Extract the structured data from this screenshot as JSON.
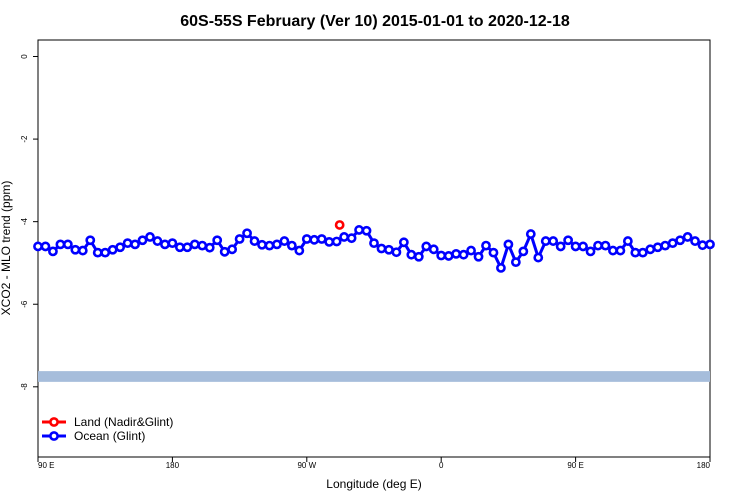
{
  "chart_data": {
    "type": "line",
    "title": "60S-55S February (Ver 10)   2015-01-01 to 2020-12-18",
    "xlabel": "Longitude (deg E)",
    "ylabel": "XCO2 - MLO trend (ppm)",
    "x_ticks": [
      {
        "value": 90,
        "label": "90 E"
      },
      {
        "value": 180,
        "label": "180"
      },
      {
        "value": 270,
        "label": "90 W"
      },
      {
        "value": 360,
        "label": "0"
      },
      {
        "value": 450,
        "label": "90 E"
      },
      {
        "value": 540,
        "label": "180"
      }
    ],
    "y_ticks": [
      0,
      -2,
      -4,
      -6,
      -8
    ],
    "xlim": [
      90,
      540
    ],
    "ylim": [
      -9.7,
      0.4
    ],
    "band": {
      "y_min": -7.88,
      "y_max": -7.62,
      "color": "#a6bddb"
    },
    "legend": {
      "position": "bottom-left"
    },
    "series": [
      {
        "name": "Land (Nadir&Glint)",
        "color": "#ff0000",
        "x": [
          292
        ],
        "y": [
          -4.08
        ]
      },
      {
        "name": "Ocean (Glint)",
        "color": "#0000ff",
        "x": [
          90,
          95,
          100,
          105,
          110,
          115,
          120,
          125,
          130,
          135,
          140,
          145,
          150,
          155,
          160,
          165,
          170,
          175,
          180,
          185,
          190,
          195,
          200,
          205,
          210,
          215,
          220,
          225,
          230,
          235,
          240,
          245,
          250,
          255,
          260,
          265,
          270,
          275,
          280,
          285,
          290,
          295,
          300,
          305,
          310,
          315,
          320,
          325,
          330,
          335,
          340,
          345,
          350,
          355,
          360,
          365,
          370,
          375,
          380,
          385,
          390,
          395,
          400,
          405,
          410,
          415,
          420,
          425,
          430,
          435,
          440,
          445,
          450,
          455,
          460,
          465,
          470,
          475,
          480,
          485,
          490,
          495,
          500,
          505,
          510,
          515,
          520,
          525,
          530,
          535,
          540
        ],
        "y": [
          -4.6,
          -4.6,
          -4.72,
          -4.55,
          -4.55,
          -4.68,
          -4.7,
          -4.45,
          -4.75,
          -4.75,
          -4.68,
          -4.62,
          -4.52,
          -4.55,
          -4.45,
          -4.37,
          -4.47,
          -4.55,
          -4.52,
          -4.62,
          -4.62,
          -4.55,
          -4.58,
          -4.63,
          -4.45,
          -4.73,
          -4.67,
          -4.42,
          -4.28,
          -4.47,
          -4.56,
          -4.58,
          -4.55,
          -4.47,
          -4.58,
          -4.7,
          -4.42,
          -4.44,
          -4.42,
          -4.49,
          -4.48,
          -4.37,
          -4.4,
          -4.2,
          -4.22,
          -4.52,
          -4.65,
          -4.68,
          -4.74,
          -4.5,
          -4.8,
          -4.85,
          -4.6,
          -4.67,
          -4.82,
          -4.83,
          -4.78,
          -4.8,
          -4.7,
          -4.85,
          -4.58,
          -4.75,
          -5.12,
          -4.55,
          -4.98,
          -4.72,
          -4.3,
          -4.87,
          -4.47,
          -4.47,
          -4.6,
          -4.45,
          -4.6,
          -4.6,
          -4.72,
          -4.58,
          -4.58,
          -4.7,
          -4.7,
          -4.47,
          -4.75,
          -4.75,
          -4.67,
          -4.62,
          -4.58,
          -4.52,
          -4.45,
          -4.37,
          -4.47,
          -4.57,
          -4.55
        ]
      }
    ]
  }
}
